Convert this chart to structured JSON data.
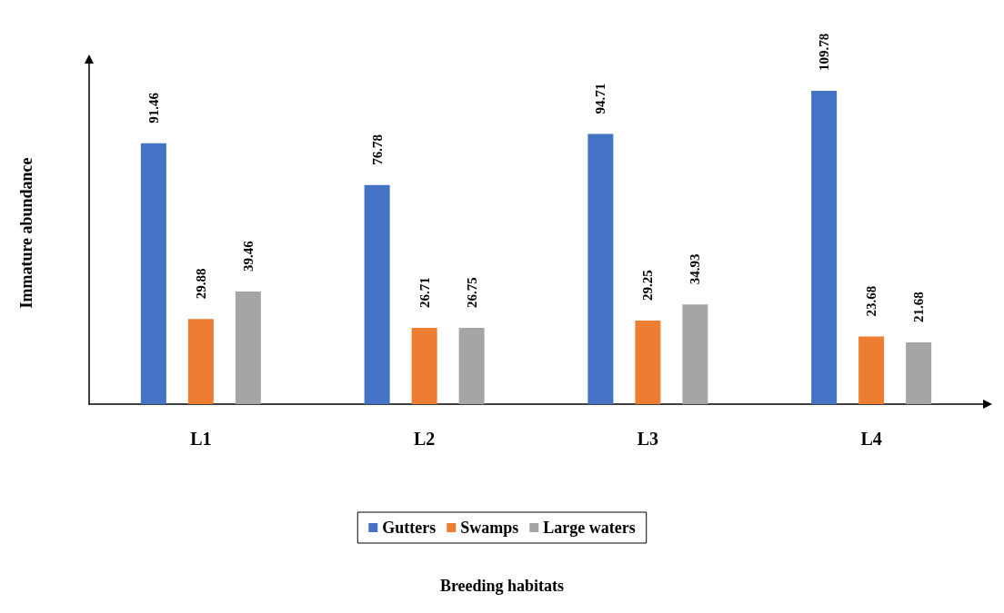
{
  "chart_data": {
    "type": "bar",
    "annotations": [
      "Breeding habitats"
    ],
    "ylabel": "Immature abundance",
    "categories": [
      "L1",
      "L2",
      "L3",
      "L4"
    ],
    "series": [
      {
        "name": "Gutters",
        "color": "#4472c4",
        "values": [
          91.46,
          76.78,
          94.71,
          109.78
        ]
      },
      {
        "name": "Swamps",
        "color": "#ed7d31",
        "values": [
          29.88,
          26.71,
          29.25,
          23.68
        ]
      },
      {
        "name": "Large waters",
        "color": "#a5a5a5",
        "values": [
          39.46,
          26.75,
          34.93,
          21.68
        ]
      }
    ],
    "data_labels": true,
    "legend": "bottom",
    "grid": false
  }
}
